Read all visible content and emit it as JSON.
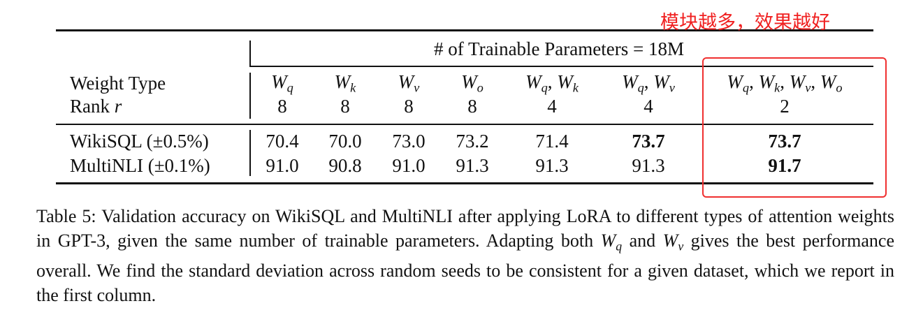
{
  "annotation": "模块越多，效果越好",
  "table": {
    "header": "# of Trainable Parameters = 18M",
    "weight_type_label": "Weight Type",
    "rank_label": [
      "Rank",
      "r"
    ],
    "columns": [
      {
        "weights": [
          [
            "W",
            "q"
          ]
        ],
        "rank": "8"
      },
      {
        "weights": [
          [
            "W",
            "k"
          ]
        ],
        "rank": "8"
      },
      {
        "weights": [
          [
            "W",
            "v"
          ]
        ],
        "rank": "8"
      },
      {
        "weights": [
          [
            "W",
            "o"
          ]
        ],
        "rank": "8"
      },
      {
        "weights": [
          [
            "W",
            "q"
          ],
          [
            "W",
            "k"
          ]
        ],
        "rank": "4"
      },
      {
        "weights": [
          [
            "W",
            "q"
          ],
          [
            "W",
            "v"
          ]
        ],
        "rank": "4"
      },
      {
        "weights": [
          [
            "W",
            "q"
          ],
          [
            "W",
            "k"
          ],
          [
            "W",
            "v"
          ],
          [
            "W",
            "o"
          ]
        ],
        "rank": "2"
      }
    ],
    "rows": [
      {
        "label": "WikiSQL (±0.5%)",
        "values": [
          "70.4",
          "70.0",
          "73.0",
          "73.2",
          "71.4",
          "73.7",
          "73.7"
        ],
        "bold": [
          5,
          6
        ]
      },
      {
        "label": "MultiNLI (±0.1%)",
        "values": [
          "91.0",
          "90.8",
          "91.0",
          "91.3",
          "91.3",
          "91.3",
          "91.7"
        ],
        "bold": [
          6
        ]
      }
    ]
  },
  "caption": [
    "Table 5: Validation accuracy on WikiSQL and MultiNLI after applying LoRA to different types of attention weights in GPT-3, given the same number of trainable parameters. Adapting both ",
    [
      "W",
      "q"
    ],
    " and ",
    [
      "W",
      "v"
    ],
    " gives the best performance overall. We find the standard deviation across random seeds to be consistent for a given dataset, which we report in the first column."
  ]
}
